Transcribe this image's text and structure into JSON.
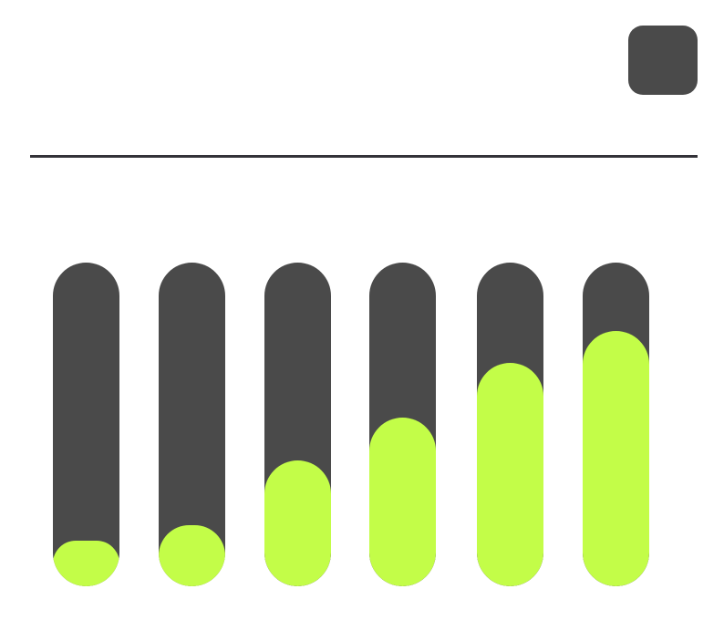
{
  "colors": {
    "track": "#4a4a4a",
    "fill": "#c3fd48",
    "button": "#4a4a4a",
    "divider": "#333238"
  },
  "bars": [
    {
      "percent": 14
    },
    {
      "percent": 19
    },
    {
      "percent": 39
    },
    {
      "percent": 52
    },
    {
      "percent": 69
    },
    {
      "percent": 79
    }
  ]
}
